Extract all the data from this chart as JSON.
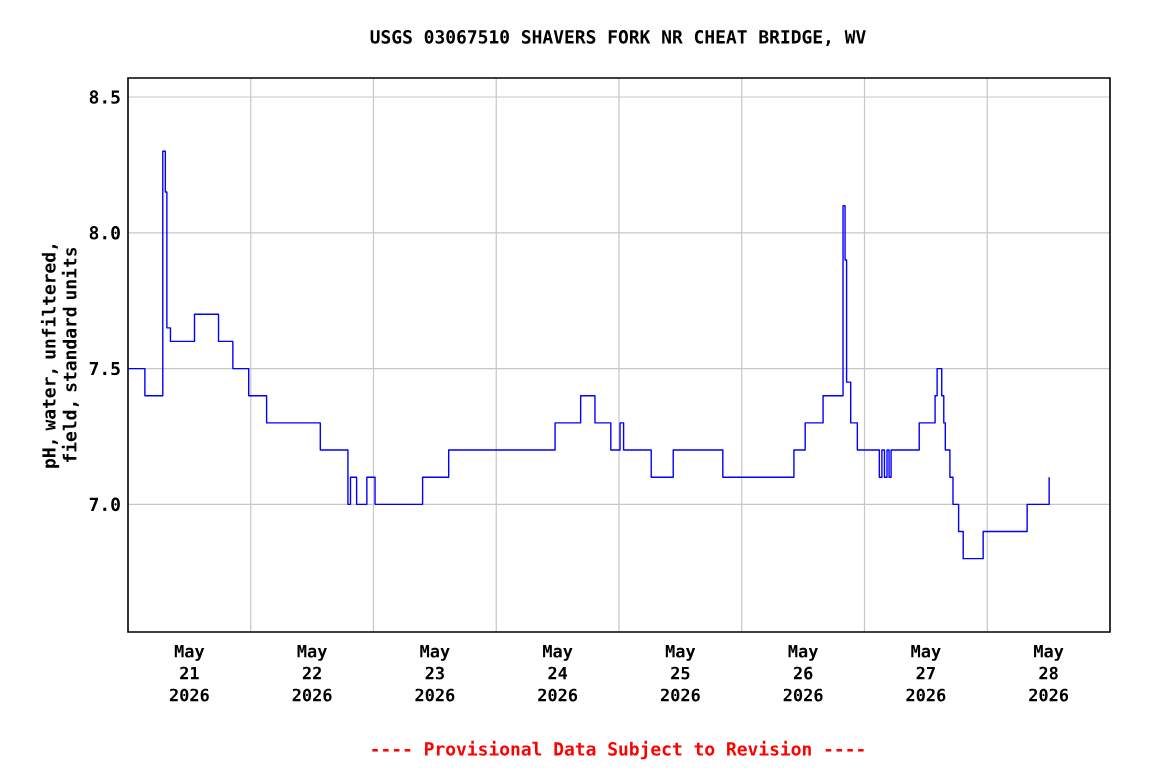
{
  "chart_data": {
    "type": "step",
    "title": "USGS 03067510 SHAVERS FORK NR CHEAT BRIDGE, WV",
    "ylabel": "pH, water, unfiltered, field, standard units",
    "annotations": [
      "---- Provisional Data Subject to Revision ----"
    ],
    "x": [
      "2026-05-21T00:00",
      "2026-05-21T03:18",
      "2026-05-21T06:48",
      "2026-05-21T07:18",
      "2026-05-21T07:36",
      "2026-05-21T08:18",
      "2026-05-21T13:00",
      "2026-05-21T17:42",
      "2026-05-21T20:30",
      "2026-05-21T23:36",
      "2026-05-22T03:06",
      "2026-05-22T13:36",
      "2026-05-22T19:00",
      "2026-05-22T19:30",
      "2026-05-22T20:42",
      "2026-05-22T22:42",
      "2026-05-23T00:18",
      "2026-05-23T09:36",
      "2026-05-23T14:42",
      "2026-05-24T11:30",
      "2026-05-24T16:30",
      "2026-05-24T19:18",
      "2026-05-24T22:24",
      "2026-05-25T00:12",
      "2026-05-25T00:54",
      "2026-05-25T06:18",
      "2026-05-25T10:36",
      "2026-05-25T20:18",
      "2026-05-26T10:12",
      "2026-05-26T12:24",
      "2026-05-26T15:54",
      "2026-05-26T19:48",
      "2026-05-26T20:12",
      "2026-05-26T20:30",
      "2026-05-26T21:18",
      "2026-05-26T22:36",
      "2026-05-27T02:54",
      "2026-05-27T03:24",
      "2026-05-27T03:54",
      "2026-05-27T04:24",
      "2026-05-27T04:48",
      "2026-05-27T05:12",
      "2026-05-27T10:42",
      "2026-05-27T13:48",
      "2026-05-27T14:12",
      "2026-05-27T15:06",
      "2026-05-27T15:30",
      "2026-05-27T15:48",
      "2026-05-27T16:42",
      "2026-05-27T17:18",
      "2026-05-27T18:24",
      "2026-05-27T19:18",
      "2026-05-27T23:12",
      "2026-05-28T07:48",
      "2026-05-28T12:06"
    ],
    "values": [
      7.5,
      7.4,
      8.3,
      8.15,
      7.65,
      7.6,
      7.7,
      7.6,
      7.5,
      7.4,
      7.3,
      7.2,
      7.0,
      7.1,
      7.0,
      7.1,
      7.0,
      7.1,
      7.2,
      7.3,
      7.4,
      7.3,
      7.2,
      7.3,
      7.2,
      7.1,
      7.2,
      7.1,
      7.2,
      7.3,
      7.4,
      8.1,
      7.9,
      7.45,
      7.3,
      7.2,
      7.1,
      7.2,
      7.1,
      7.2,
      7.1,
      7.2,
      7.3,
      7.4,
      7.5,
      7.4,
      7.3,
      7.2,
      7.1,
      7.0,
      6.9,
      6.8,
      6.9,
      7.0,
      7.1
    ],
    "color": "#0000ff",
    "xlim": [
      "2026-05-21T00:00",
      "2026-05-29T00:00"
    ],
    "xticks": [
      {
        "value": "2026-05-21T12:00",
        "label": "May 21 2026"
      },
      {
        "value": "2026-05-22T12:00",
        "label": "May 22 2026"
      },
      {
        "value": "2026-05-23T12:00",
        "label": "May 23 2026"
      },
      {
        "value": "2026-05-24T12:00",
        "label": "May 24 2026"
      },
      {
        "value": "2026-05-25T12:00",
        "label": "May 25 2026"
      },
      {
        "value": "2026-05-26T12:00",
        "label": "May 26 2026"
      },
      {
        "value": "2026-05-27T12:00",
        "label": "May 27 2026"
      },
      {
        "value": "2026-05-28T12:00",
        "label": "May 28 2026"
      },
      {
        "value": "2026-05-22T00:00",
        "label": null
      },
      {
        "value": "2026-05-23T00:00",
        "label": null
      },
      {
        "value": "2026-05-24T00:00",
        "label": null
      },
      {
        "value": "2026-05-25T00:00",
        "label": null
      },
      {
        "value": "2026-05-26T00:00",
        "label": null
      },
      {
        "value": "2026-05-27T00:00",
        "label": null
      },
      {
        "value": "2026-05-28T00:00",
        "label": null
      }
    ],
    "ylim": [
      6.53,
      8.57
    ],
    "yticks": [
      {
        "value": 7.0,
        "label": "7.0"
      },
      {
        "value": 7.5,
        "label": "7.5"
      },
      {
        "value": 8.0,
        "label": "8.0"
      },
      {
        "value": 8.5,
        "label": "8.5"
      }
    ],
    "grid": true
  }
}
